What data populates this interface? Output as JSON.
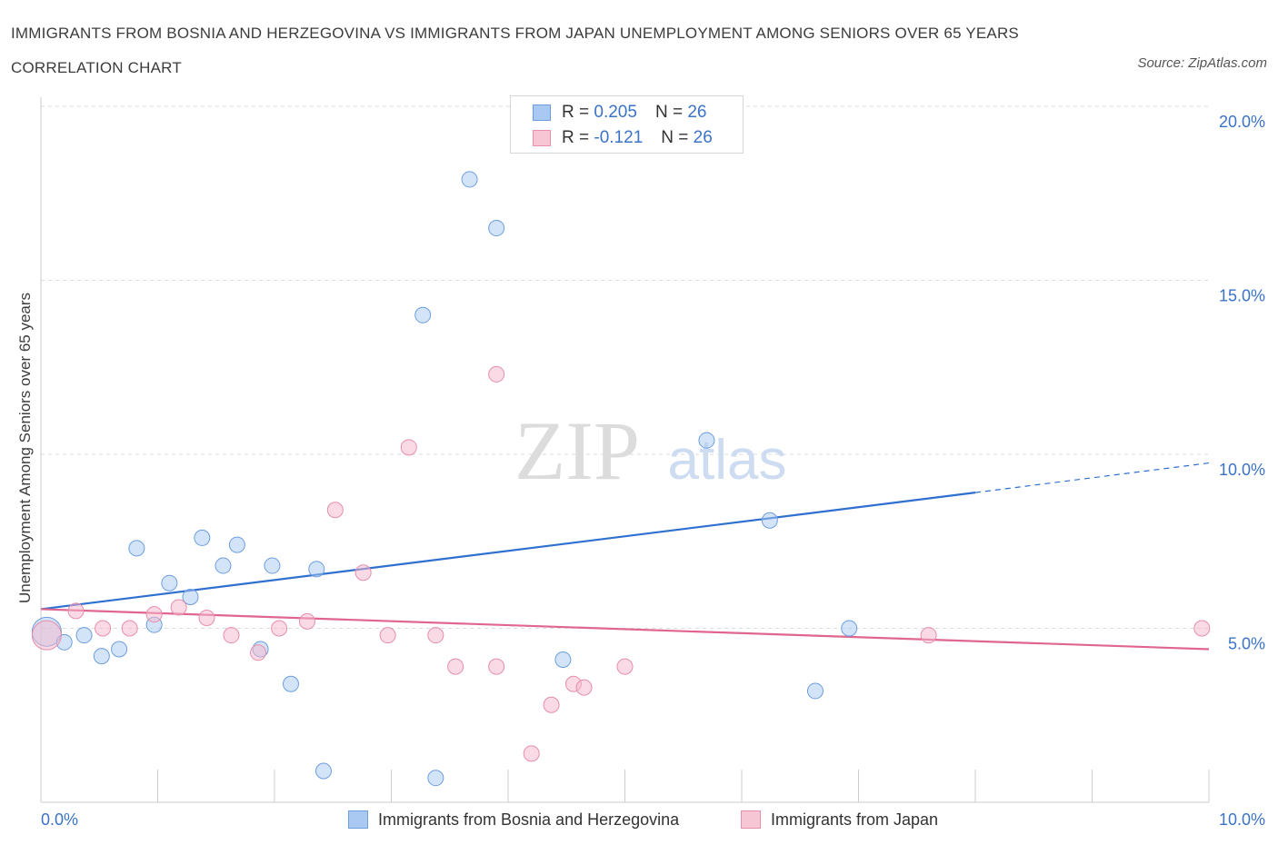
{
  "title": "IMMIGRANTS FROM BOSNIA AND HERZEGOVINA VS IMMIGRANTS FROM JAPAN UNEMPLOYMENT AMONG SENIORS OVER 65 YEARS CORRELATION CHART",
  "source": "Source: ZipAtlas.com",
  "watermark": {
    "zip": "ZIP",
    "atlas": "atlas"
  },
  "legend": {
    "r_label": "R =",
    "n_label": "N =",
    "series": [
      {
        "r": "0.205",
        "n": "26"
      },
      {
        "r": "-0.121",
        "n": "26"
      }
    ]
  },
  "colors": {
    "bosnia_fill": "#a9c9f2",
    "bosnia_stroke": "#6c9ee0",
    "bosnia_line": "#2f6fcf",
    "japan_fill": "#f6b8cb",
    "japan_stroke": "#e78eaa",
    "japan_line": "#e0668f",
    "axis_text": "#3b73c9",
    "grid": "#d7dce3"
  },
  "chart_data": {
    "type": "scatter",
    "title": "IMMIGRANTS FROM BOSNIA AND HERZEGOVINA VS IMMIGRANTS FROM JAPAN UNEMPLOYMENT AMONG SENIORS OVER 65 YEARS CORRELATION CHART",
    "xlabel": "",
    "ylabel": "Unemployment Among Seniors over 65 years",
    "xlim": [
      0,
      10
    ],
    "ylim": [
      0,
      20
    ],
    "x_tick_labels": [
      "0.0%",
      "10.0%"
    ],
    "y_ticks": [
      5,
      10,
      15,
      20
    ],
    "y_tick_labels": [
      "5.0%",
      "10.0%",
      "15.0%",
      "20.0%"
    ],
    "grid": true,
    "series": [
      {
        "name": "Immigrants from Bosnia and Herzegovina",
        "points": [
          {
            "x": 0.05,
            "y": 4.9,
            "big": true
          },
          {
            "x": 0.2,
            "y": 4.6
          },
          {
            "x": 0.37,
            "y": 4.8
          },
          {
            "x": 0.52,
            "y": 4.2
          },
          {
            "x": 0.67,
            "y": 4.4
          },
          {
            "x": 0.82,
            "y": 7.3
          },
          {
            "x": 0.97,
            "y": 5.1
          },
          {
            "x": 1.1,
            "y": 6.3
          },
          {
            "x": 1.28,
            "y": 5.9
          },
          {
            "x": 1.38,
            "y": 7.6
          },
          {
            "x": 1.56,
            "y": 6.8
          },
          {
            "x": 1.68,
            "y": 7.4
          },
          {
            "x": 1.88,
            "y": 4.4
          },
          {
            "x": 1.98,
            "y": 6.8
          },
          {
            "x": 2.14,
            "y": 3.4
          },
          {
            "x": 2.36,
            "y": 6.7
          },
          {
            "x": 2.42,
            "y": 0.9
          },
          {
            "x": 3.27,
            "y": 14.0
          },
          {
            "x": 3.38,
            "y": 0.7
          },
          {
            "x": 3.67,
            "y": 17.9
          },
          {
            "x": 3.9,
            "y": 16.5
          },
          {
            "x": 4.47,
            "y": 4.1
          },
          {
            "x": 5.7,
            "y": 10.4
          },
          {
            "x": 6.24,
            "y": 8.1
          },
          {
            "x": 6.63,
            "y": 3.2
          },
          {
            "x": 6.92,
            "y": 5.0
          }
        ],
        "trend": {
          "x0": 0.0,
          "y0": 5.55,
          "x1": 8.0,
          "y1": 8.9,
          "dashed_to_x": 10.0,
          "dashed_to_y": 9.75
        }
      },
      {
        "name": "Immigrants from Japan",
        "points": [
          {
            "x": 0.05,
            "y": 4.8,
            "big": true
          },
          {
            "x": 0.3,
            "y": 5.5
          },
          {
            "x": 0.53,
            "y": 5.0
          },
          {
            "x": 0.76,
            "y": 5.0
          },
          {
            "x": 0.97,
            "y": 5.4
          },
          {
            "x": 1.18,
            "y": 5.6
          },
          {
            "x": 1.42,
            "y": 5.3
          },
          {
            "x": 1.63,
            "y": 4.8
          },
          {
            "x": 1.86,
            "y": 4.3
          },
          {
            "x": 2.04,
            "y": 5.0
          },
          {
            "x": 2.28,
            "y": 5.2
          },
          {
            "x": 2.52,
            "y": 8.4
          },
          {
            "x": 2.76,
            "y": 6.6
          },
          {
            "x": 2.97,
            "y": 4.8
          },
          {
            "x": 3.15,
            "y": 10.2
          },
          {
            "x": 3.38,
            "y": 4.8
          },
          {
            "x": 3.55,
            "y": 3.9
          },
          {
            "x": 3.9,
            "y": 3.9
          },
          {
            "x": 3.9,
            "y": 12.3
          },
          {
            "x": 4.2,
            "y": 1.4
          },
          {
            "x": 4.37,
            "y": 2.8
          },
          {
            "x": 4.56,
            "y": 3.4
          },
          {
            "x": 4.65,
            "y": 3.3
          },
          {
            "x": 5.0,
            "y": 3.9
          },
          {
            "x": 7.6,
            "y": 4.8
          },
          {
            "x": 9.94,
            "y": 5.0
          }
        ],
        "trend": {
          "x0": 0.0,
          "y0": 5.55,
          "x1": 10.0,
          "y1": 4.4
        }
      }
    ]
  }
}
